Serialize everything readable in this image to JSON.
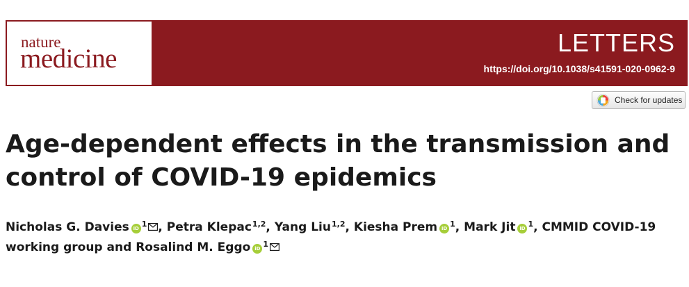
{
  "header": {
    "logo_top": "nature",
    "logo_bottom": "medicine",
    "section": "LETTERS",
    "doi": "https://doi.org/10.1038/s41591-020-0962-9"
  },
  "check_updates": {
    "label": "Check for updates"
  },
  "article": {
    "title_line1": "Age-dependent effects in the transmission and",
    "title_line2": "control of COVID-19 epidemics"
  },
  "authors": {
    "a1_name": "Nicholas G. Davies",
    "a1_aff": "1",
    "a2_name": "Petra Klepac",
    "a2_aff": "1,2",
    "a3_name": "Yang Liu",
    "a3_aff": "1,2",
    "a4_name": "Kiesha Prem",
    "a4_aff": "1",
    "a5_name": "Mark Jit",
    "a5_aff": "1",
    "group": "CMMID COVID-19 working group and",
    "a6_name": "Rosalind M. Eggo",
    "a6_aff": "1",
    "sep": ", ",
    "orcid_badge": "iD"
  },
  "colors": {
    "brand": "#8b1a1f",
    "orcid": "#a6ce39"
  }
}
